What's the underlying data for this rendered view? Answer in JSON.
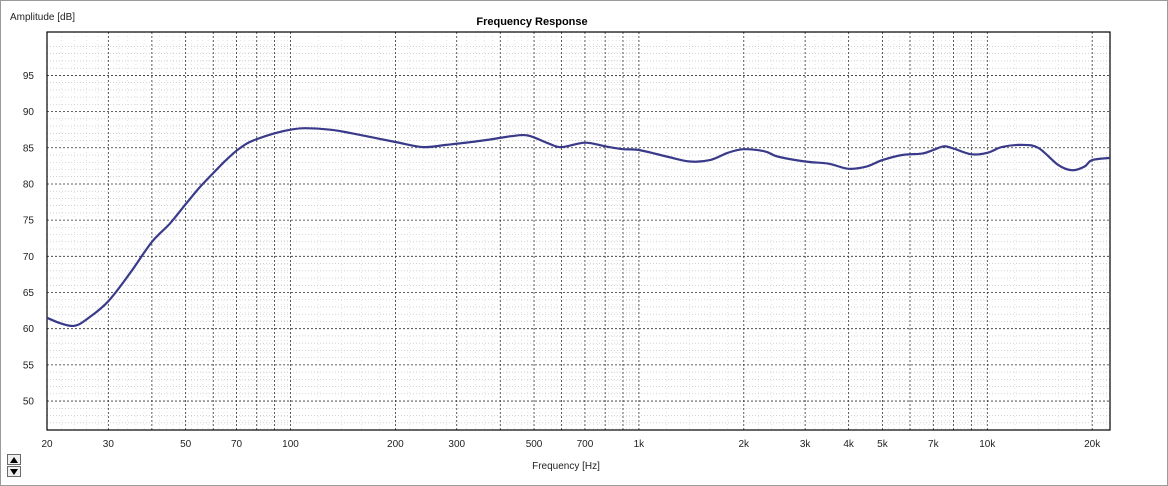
{
  "chart_data": {
    "type": "line",
    "title": "Frequency Response",
    "xlabel": "Frequency [Hz]",
    "ylabel": "Amplitude [dB]",
    "xscale": "log",
    "xlim": [
      20,
      22500
    ],
    "ylim": [
      46,
      101
    ],
    "grid": true,
    "x_ticks": [
      {
        "value": 20,
        "label": "20"
      },
      {
        "value": 30,
        "label": "30"
      },
      {
        "value": 50,
        "label": "50"
      },
      {
        "value": 70,
        "label": "70"
      },
      {
        "value": 100,
        "label": "100"
      },
      {
        "value": 200,
        "label": "200"
      },
      {
        "value": 300,
        "label": "300"
      },
      {
        "value": 500,
        "label": "500"
      },
      {
        "value": 700,
        "label": "700"
      },
      {
        "value": 1000,
        "label": "1k"
      },
      {
        "value": 2000,
        "label": "2k"
      },
      {
        "value": 3000,
        "label": "3k"
      },
      {
        "value": 4000,
        "label": "4k"
      },
      {
        "value": 5000,
        "label": "5k"
      },
      {
        "value": 7000,
        "label": "7k"
      },
      {
        "value": 10000,
        "label": "10k"
      },
      {
        "value": 20000,
        "label": "20k"
      }
    ],
    "y_ticks": [
      50,
      55,
      60,
      65,
      70,
      75,
      80,
      85,
      90,
      95
    ],
    "series": [
      {
        "color": "#3a3a8a",
        "points": [
          [
            20,
            61.5
          ],
          [
            22,
            60.7
          ],
          [
            24,
            60.4
          ],
          [
            26,
            61.3
          ],
          [
            30,
            63.8
          ],
          [
            35,
            68
          ],
          [
            40,
            72
          ],
          [
            45,
            74.5
          ],
          [
            50,
            77.2
          ],
          [
            55,
            79.6
          ],
          [
            60,
            81.5
          ],
          [
            65,
            83.2
          ],
          [
            70,
            84.6
          ],
          [
            75,
            85.6
          ],
          [
            80,
            86.2
          ],
          [
            90,
            87
          ],
          [
            100,
            87.5
          ],
          [
            110,
            87.7
          ],
          [
            130,
            87.5
          ],
          [
            150,
            87
          ],
          [
            200,
            85.8
          ],
          [
            240,
            85.1
          ],
          [
            280,
            85.4
          ],
          [
            330,
            85.8
          ],
          [
            380,
            86.2
          ],
          [
            430,
            86.6
          ],
          [
            480,
            86.7
          ],
          [
            550,
            85.6
          ],
          [
            600,
            85.1
          ],
          [
            700,
            85.7
          ],
          [
            800,
            85.2
          ],
          [
            900,
            84.8
          ],
          [
            1000,
            84.7
          ],
          [
            1200,
            83.8
          ],
          [
            1400,
            83.1
          ],
          [
            1600,
            83.3
          ],
          [
            1800,
            84.3
          ],
          [
            2000,
            84.8
          ],
          [
            2300,
            84.5
          ],
          [
            2500,
            83.8
          ],
          [
            3000,
            83.1
          ],
          [
            3500,
            82.8
          ],
          [
            4000,
            82.1
          ],
          [
            4500,
            82.4
          ],
          [
            5000,
            83.3
          ],
          [
            5700,
            84
          ],
          [
            6500,
            84.2
          ],
          [
            7000,
            84.7
          ],
          [
            7500,
            85.2
          ],
          [
            8000,
            84.9
          ],
          [
            9000,
            84.1
          ],
          [
            10000,
            84.3
          ],
          [
            11000,
            85.1
          ],
          [
            12500,
            85.4
          ],
          [
            14000,
            85
          ],
          [
            16000,
            82.6
          ],
          [
            17500,
            81.9
          ],
          [
            19000,
            82.4
          ],
          [
            20000,
            83.3
          ],
          [
            22500,
            83.6
          ]
        ]
      }
    ]
  },
  "controls": {
    "scroll_up": "▲",
    "scroll_down": "▼"
  }
}
